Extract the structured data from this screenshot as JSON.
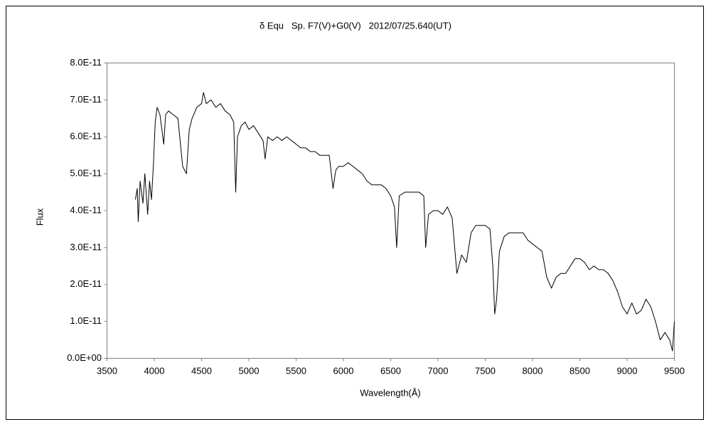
{
  "chart_data": {
    "type": "line",
    "title": "δ Equ   Sp. F7(V)+G0(V)   2012/07/25.640(UT)",
    "x_label": "Wavelength(Å)",
    "y_label": "Flux",
    "color": "#000000",
    "grid": false,
    "xlim": [
      3500,
      9500
    ],
    "xticks": [
      3500,
      4000,
      4500,
      5000,
      5500,
      6000,
      6500,
      7000,
      7500,
      8000,
      8500,
      9000,
      9500
    ],
    "ylim": [
      0,
      8e-11
    ],
    "yticks": [
      {
        "value": 0,
        "label": "0.0E+00"
      },
      {
        "value": 1e-11,
        "label": "1.0E-11"
      },
      {
        "value": 2e-11,
        "label": "2.0E-11"
      },
      {
        "value": 3e-11,
        "label": "3.0E-11"
      },
      {
        "value": 4e-11,
        "label": "4.0E-11"
      },
      {
        "value": 5e-11,
        "label": "5.0E-11"
      },
      {
        "value": 6e-11,
        "label": "6.0E-11"
      },
      {
        "value": 7e-11,
        "label": "7.0E-11"
      },
      {
        "value": 8e-11,
        "label": "8.0E-11"
      }
    ],
    "x": [
      3800,
      3820,
      3830,
      3850,
      3880,
      3900,
      3930,
      3950,
      3970,
      3990,
      4010,
      4030,
      4060,
      4100,
      4120,
      4150,
      4200,
      4250,
      4300,
      4340,
      4370,
      4400,
      4450,
      4500,
      4520,
      4550,
      4600,
      4650,
      4700,
      4750,
      4800,
      4840,
      4861,
      4880,
      4920,
      4960,
      5000,
      5050,
      5100,
      5150,
      5172,
      5200,
      5250,
      5300,
      5350,
      5400,
      5450,
      5500,
      5550,
      5600,
      5650,
      5700,
      5750,
      5800,
      5850,
      5890,
      5920,
      5950,
      6000,
      6050,
      6100,
      6150,
      6200,
      6250,
      6300,
      6350,
      6400,
      6450,
      6500,
      6540,
      6563,
      6590,
      6650,
      6700,
      6750,
      6800,
      6850,
      6870,
      6900,
      6950,
      7000,
      7050,
      7100,
      7150,
      7200,
      7250,
      7300,
      7350,
      7400,
      7450,
      7500,
      7550,
      7580,
      7600,
      7620,
      7650,
      7700,
      7750,
      7800,
      7850,
      7900,
      7950,
      8000,
      8050,
      8100,
      8150,
      8200,
      8250,
      8300,
      8350,
      8400,
      8450,
      8500,
      8550,
      8600,
      8650,
      8700,
      8750,
      8800,
      8850,
      8900,
      8950,
      9000,
      9050,
      9100,
      9150,
      9200,
      9250,
      9300,
      9350,
      9400,
      9450,
      9480,
      9500
    ],
    "values": [
      4.3e-11,
      4.6e-11,
      3.7e-11,
      4.8e-11,
      4.2e-11,
      5e-11,
      3.9e-11,
      4.8e-11,
      4.3e-11,
      5.2e-11,
      6.4e-11,
      6.8e-11,
      6.6e-11,
      5.8e-11,
      6.6e-11,
      6.7e-11,
      6.6e-11,
      6.5e-11,
      5.2e-11,
      5e-11,
      6.2e-11,
      6.5e-11,
      6.8e-11,
      6.9e-11,
      7.2e-11,
      6.9e-11,
      7e-11,
      6.8e-11,
      6.9e-11,
      6.7e-11,
      6.6e-11,
      6.4e-11,
      4.5e-11,
      6e-11,
      6.3e-11,
      6.4e-11,
      6.2e-11,
      6.3e-11,
      6.1e-11,
      5.9e-11,
      5.4e-11,
      6e-11,
      5.9e-11,
      6e-11,
      5.9e-11,
      6e-11,
      5.9e-11,
      5.8e-11,
      5.7e-11,
      5.7e-11,
      5.6e-11,
      5.6e-11,
      5.5e-11,
      5.5e-11,
      5.5e-11,
      4.6e-11,
      5.1e-11,
      5.2e-11,
      5.2e-11,
      5.3e-11,
      5.2e-11,
      5.1e-11,
      5e-11,
      4.8e-11,
      4.7e-11,
      4.7e-11,
      4.7e-11,
      4.6e-11,
      4.4e-11,
      4.1e-11,
      3e-11,
      4.4e-11,
      4.5e-11,
      4.5e-11,
      4.5e-11,
      4.5e-11,
      4.4e-11,
      3e-11,
      3.9e-11,
      4e-11,
      4e-11,
      3.9e-11,
      4.1e-11,
      3.8e-11,
      2.3e-11,
      2.8e-11,
      2.6e-11,
      3.4e-11,
      3.6e-11,
      3.6e-11,
      3.6e-11,
      3.5e-11,
      2.5e-11,
      1.2e-11,
      1.6e-11,
      2.9e-11,
      3.3e-11,
      3.4e-11,
      3.4e-11,
      3.4e-11,
      3.4e-11,
      3.2e-11,
      3.1e-11,
      3e-11,
      2.9e-11,
      2.2e-11,
      1.9e-11,
      2.2e-11,
      2.3e-11,
      2.3e-11,
      2.5e-11,
      2.7e-11,
      2.7e-11,
      2.6e-11,
      2.4e-11,
      2.5e-11,
      2.4e-11,
      2.4e-11,
      2.3e-11,
      2.1e-11,
      1.8e-11,
      1.4e-11,
      1.2e-11,
      1.5e-11,
      1.2e-11,
      1.3e-11,
      1.6e-11,
      1.4e-11,
      1e-11,
      5e-12,
      7e-12,
      5e-12,
      2e-12,
      1e-11
    ]
  }
}
